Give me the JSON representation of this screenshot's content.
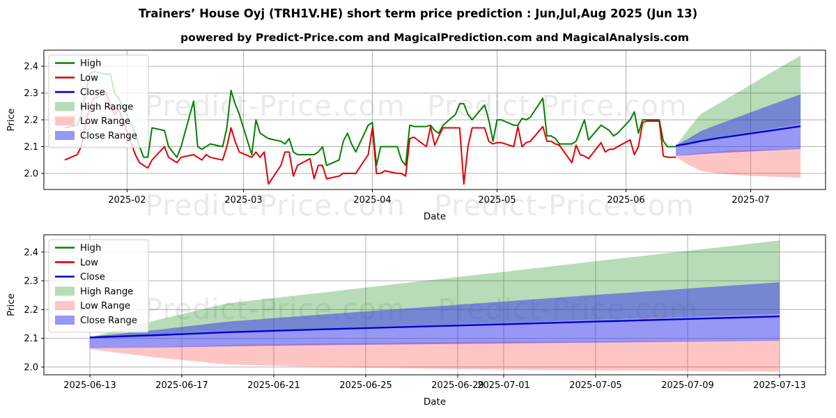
{
  "title": "Trainers’ House Oyj (TRH1V.HE) short term price prediction : Jun,Jul,Aug 2025 (Jun 13)",
  "subtitle": "powered by Predict-Price.com and MagicalPrediction.com and MagicalAnalysis.com",
  "watermark": "Predict-Price.com",
  "colors": {
    "high": "#008000",
    "low": "#e00000",
    "close": "#0000cc",
    "high_range": "rgba(0,128,0,0.28)",
    "low_range": "rgba(255,40,40,0.27)",
    "close_range": "rgba(55,55,235,0.52)",
    "grid": "#b0b0b0",
    "spine": "#000000",
    "watermark_color": "rgba(90,90,90,0.13)"
  },
  "chart_data": {
    "type": "line",
    "legend": [
      {
        "label": "High",
        "swatch": "line",
        "color_key": "high"
      },
      {
        "label": "Low",
        "swatch": "line",
        "color_key": "low"
      },
      {
        "label": "Close",
        "swatch": "line",
        "color_key": "close"
      },
      {
        "label": "High Range",
        "swatch": "patch",
        "color_key": "high_range"
      },
      {
        "label": "Low Range",
        "swatch": "patch",
        "color_key": "low_range"
      },
      {
        "label": "Close Range",
        "swatch": "patch",
        "color_key": "close_range"
      }
    ],
    "charts": [
      {
        "name": "full-history-with-forecast",
        "xlabel": "Date",
        "ylabel": "Price",
        "grid": true,
        "legend_position": "upper-left",
        "yticks": [
          2.0,
          2.1,
          2.2,
          2.3,
          2.4
        ],
        "xticks": [
          {
            "label": "2025-02",
            "date": "2025-02-01"
          },
          {
            "label": "2025-03",
            "date": "2025-03-01"
          },
          {
            "label": "2025-04",
            "date": "2025-04-01"
          },
          {
            "label": "2025-05",
            "date": "2025-05-01"
          },
          {
            "label": "2025-06",
            "date": "2025-06-01"
          },
          {
            "label": "2025-07",
            "date": "2025-07-01"
          }
        ],
        "xlim": [
          "2025-01-12",
          "2025-07-19"
        ],
        "ylim": [
          1.94,
          2.46
        ],
        "show_history": true
      },
      {
        "name": "forecast-zoom",
        "xlabel": "Date",
        "ylabel": "Price",
        "grid": true,
        "legend_position": "upper-left",
        "yticks": [
          2.0,
          2.1,
          2.2,
          2.3,
          2.4
        ],
        "xticks": [
          {
            "label": "2025-06-13",
            "date": "2025-06-13"
          },
          {
            "label": "2025-06-17",
            "date": "2025-06-17"
          },
          {
            "label": "2025-06-21",
            "date": "2025-06-21"
          },
          {
            "label": "2025-06-25",
            "date": "2025-06-25"
          },
          {
            "label": "2025-06-29",
            "date": "2025-06-29"
          },
          {
            "label": "2025-07-01",
            "date": "2025-07-01"
          },
          {
            "label": "2025-07-05",
            "date": "2025-07-05"
          },
          {
            "label": "2025-07-09",
            "date": "2025-07-09"
          },
          {
            "label": "2025-07-13",
            "date": "2025-07-13"
          }
        ],
        "xlim": [
          "2025-06-11",
          "2025-07-15"
        ],
        "ylim": [
          1.973,
          2.46
        ],
        "show_history": false
      }
    ],
    "history": {
      "dates": [
        "2025-01-17",
        "2025-01-20",
        "2025-01-21",
        "2025-01-22",
        "2025-01-23",
        "2025-01-24",
        "2025-01-27",
        "2025-01-28",
        "2025-01-29",
        "2025-01-30",
        "2025-01-31",
        "2025-02-03",
        "2025-02-04",
        "2025-02-05",
        "2025-02-06",
        "2025-02-07",
        "2025-02-10",
        "2025-02-11",
        "2025-02-12",
        "2025-02-13",
        "2025-02-14",
        "2025-02-17",
        "2025-02-18",
        "2025-02-19",
        "2025-02-20",
        "2025-02-21",
        "2025-02-24",
        "2025-02-25",
        "2025-02-26",
        "2025-02-27",
        "2025-02-28",
        "2025-03-03",
        "2025-03-04",
        "2025-03-05",
        "2025-03-06",
        "2025-03-07",
        "2025-03-10",
        "2025-03-11",
        "2025-03-12",
        "2025-03-13",
        "2025-03-14",
        "2025-03-17",
        "2025-03-18",
        "2025-03-19",
        "2025-03-20",
        "2025-03-21",
        "2025-03-24",
        "2025-03-25",
        "2025-03-26",
        "2025-03-27",
        "2025-03-28",
        "2025-03-31",
        "2025-04-01",
        "2025-04-02",
        "2025-04-03",
        "2025-04-04",
        "2025-04-07",
        "2025-04-08",
        "2025-04-09",
        "2025-04-10",
        "2025-04-11",
        "2025-04-14",
        "2025-04-15",
        "2025-04-16",
        "2025-04-17",
        "2025-04-18",
        "2025-04-21",
        "2025-04-22",
        "2025-04-23",
        "2025-04-24",
        "2025-04-25",
        "2025-04-28",
        "2025-04-29",
        "2025-04-30",
        "2025-05-01",
        "2025-05-02",
        "2025-05-05",
        "2025-05-06",
        "2025-05-07",
        "2025-05-08",
        "2025-05-09",
        "2025-05-12",
        "2025-05-13",
        "2025-05-14",
        "2025-05-15",
        "2025-05-16",
        "2025-05-19",
        "2025-05-20",
        "2025-05-21",
        "2025-05-22",
        "2025-05-23",
        "2025-05-26",
        "2025-05-27",
        "2025-05-28",
        "2025-05-29",
        "2025-05-30",
        "2025-06-02",
        "2025-06-03",
        "2025-06-04",
        "2025-06-05",
        "2025-06-06",
        "2025-06-09",
        "2025-06-10",
        "2025-06-11",
        "2025-06-12",
        "2025-06-13"
      ],
      "high": [
        2.17,
        2.18,
        2.22,
        2.3,
        2.37,
        2.38,
        2.37,
        2.37,
        2.3,
        2.28,
        2.25,
        2.15,
        2.1,
        2.06,
        2.06,
        2.17,
        2.16,
        2.1,
        2.08,
        2.06,
        2.1,
        2.27,
        2.1,
        2.09,
        2.1,
        2.11,
        2.1,
        2.17,
        2.31,
        2.26,
        2.22,
        2.07,
        2.2,
        2.15,
        2.14,
        2.13,
        2.12,
        2.11,
        2.13,
        2.08,
        2.07,
        2.07,
        2.07,
        2.08,
        2.1,
        2.03,
        2.05,
        2.12,
        2.15,
        2.11,
        2.08,
        2.18,
        2.19,
        2.03,
        2.1,
        2.1,
        2.1,
        2.05,
        2.03,
        2.18,
        2.175,
        2.175,
        2.18,
        2.16,
        2.15,
        2.18,
        2.22,
        2.26,
        2.26,
        2.22,
        2.2,
        2.255,
        2.2,
        2.12,
        2.2,
        2.2,
        2.18,
        2.18,
        2.205,
        2.2,
        2.21,
        2.28,
        2.14,
        2.14,
        2.13,
        2.11,
        2.11,
        2.12,
        2.16,
        2.2,
        2.125,
        2.18,
        2.17,
        2.16,
        2.14,
        2.15,
        2.2,
        2.23,
        2.15,
        2.2,
        2.2,
        2.2,
        2.12,
        2.1,
        2.1,
        2.1
      ],
      "low": [
        2.05,
        2.07,
        2.1,
        2.18,
        2.25,
        2.28,
        2.3,
        2.25,
        2.22,
        2.24,
        2.2,
        2.07,
        2.04,
        2.03,
        2.02,
        2.05,
        2.1,
        2.06,
        2.05,
        2.04,
        2.06,
        2.07,
        2.06,
        2.05,
        2.07,
        2.06,
        2.05,
        2.1,
        2.17,
        2.12,
        2.08,
        2.06,
        2.08,
        2.06,
        2.08,
        1.96,
        2.03,
        2.08,
        2.08,
        1.99,
        2.03,
        2.055,
        1.98,
        2.03,
        2.03,
        1.98,
        1.99,
        2.0,
        2.0,
        2.0,
        2.0,
        2.07,
        2.17,
        2.0,
        2.0,
        2.01,
        2.0,
        2.0,
        1.99,
        2.13,
        2.135,
        2.1,
        2.175,
        2.105,
        2.14,
        2.17,
        2.17,
        2.17,
        1.96,
        2.1,
        2.17,
        2.17,
        2.12,
        2.11,
        2.115,
        2.115,
        2.1,
        2.175,
        2.1,
        2.115,
        2.12,
        2.175,
        2.12,
        2.12,
        2.11,
        2.105,
        2.04,
        2.105,
        2.07,
        2.065,
        2.055,
        2.115,
        2.08,
        2.09,
        2.09,
        2.1,
        2.125,
        2.07,
        2.1,
        2.19,
        2.195,
        2.195,
        2.065,
        2.06,
        2.06,
        2.06
      ]
    },
    "forecast": {
      "dates": [
        "2025-06-13",
        "2025-06-16",
        "2025-06-19",
        "2025-06-23",
        "2025-06-27",
        "2025-07-01",
        "2025-07-05",
        "2025-07-09",
        "2025-07-13"
      ],
      "close": [
        2.103,
        2.111,
        2.121,
        2.131,
        2.14,
        2.149,
        2.158,
        2.167,
        2.176
      ],
      "close_upper": [
        2.105,
        2.13,
        2.158,
        2.182,
        2.205,
        2.228,
        2.251,
        2.273,
        2.295
      ],
      "close_lower": [
        2.065,
        2.068,
        2.072,
        2.076,
        2.079,
        2.082,
        2.085,
        2.088,
        2.091
      ],
      "high_upper": [
        2.103,
        2.165,
        2.222,
        2.258,
        2.295,
        2.331,
        2.368,
        2.404,
        2.44
      ],
      "high_lower": [
        2.103,
        2.113,
        2.124,
        2.134,
        2.144,
        2.154,
        2.165,
        2.175,
        2.185
      ],
      "low_upper": [
        2.064,
        2.07,
        2.077,
        2.082,
        2.086,
        2.088,
        2.089,
        2.09,
        2.091
      ],
      "low_lower": [
        2.062,
        2.032,
        2.009,
        2.0,
        1.995,
        1.991,
        1.988,
        1.986,
        1.984
      ]
    }
  }
}
